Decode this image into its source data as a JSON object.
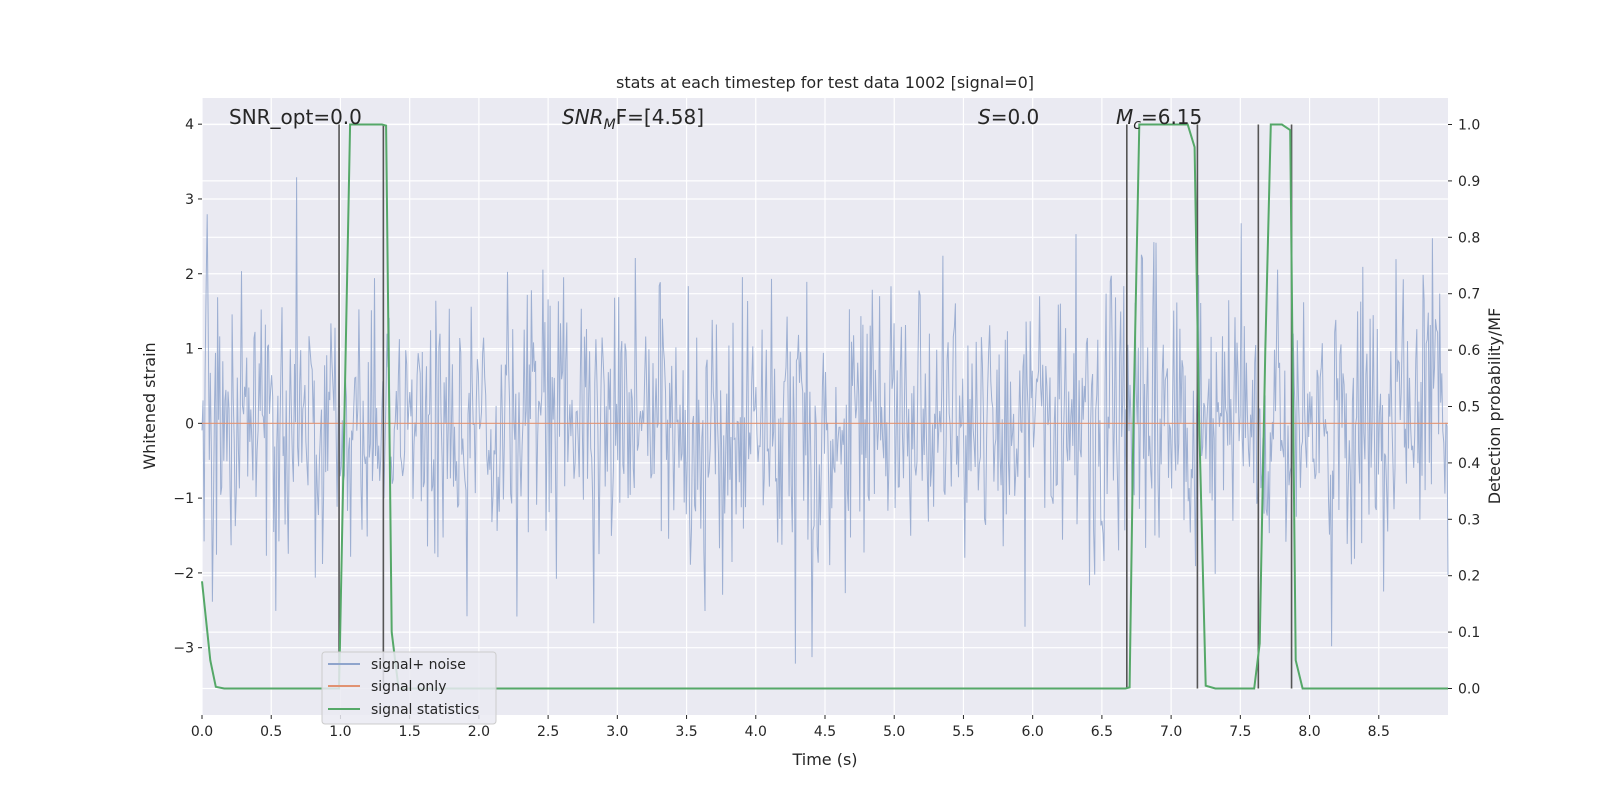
{
  "chart_data": {
    "type": "line",
    "title": "stats at each timestep for test data 1002 [signal=0]",
    "xlabel": "Time (s)",
    "ylabel": "Whitened strain",
    "y2label": "Detection probability/MF",
    "xlim": [
      0.0,
      9.0
    ],
    "ylim": [
      -3.9,
      4.35
    ],
    "y2lim": [
      -0.047,
      1.047
    ],
    "xticks": [
      0.0,
      0.5,
      1.0,
      1.5,
      2.0,
      2.5,
      3.0,
      3.5,
      4.0,
      4.5,
      5.0,
      5.5,
      6.0,
      6.5,
      7.0,
      7.5,
      8.0,
      8.5
    ],
    "xtick_labels": [
      "0.0",
      "0.5",
      "1.0",
      "1.5",
      "2.0",
      "2.5",
      "3.0",
      "3.5",
      "4.0",
      "4.5",
      "5.0",
      "5.5",
      "6.0",
      "6.5",
      "7.0",
      "7.5",
      "8.0",
      "8.5"
    ],
    "yticks": [
      -3,
      -2,
      -1,
      0,
      1,
      2,
      3,
      4
    ],
    "ytick_labels": [
      "−3",
      "−2",
      "−1",
      "0",
      "1",
      "2",
      "3",
      "4"
    ],
    "y2ticks": [
      0.0,
      0.1,
      0.2,
      0.3,
      0.4,
      0.5,
      0.6,
      0.7,
      0.8,
      0.9,
      1.0
    ],
    "y2tick_labels": [
      "0.0",
      "0.1",
      "0.2",
      "0.3",
      "0.4",
      "0.5",
      "0.6",
      "0.7",
      "0.8",
      "0.9",
      "1.0"
    ],
    "grid": true,
    "legend_position": "bottom-left",
    "annotations": {
      "snr_opt": "SNR_opt=0.0",
      "snr_mf_main": "SNR",
      "snr_mf_sub": "M",
      "snr_mf_rest": "F=[4.58]",
      "s_main": "S",
      "s_rest": "=0.0",
      "mc_main": "M",
      "mc_sub": "c",
      "mc_rest": "=6.15"
    },
    "series": [
      {
        "name": "signal+ noise",
        "color": "#8fa4cc",
        "noise_std": 0.95,
        "noise_clip": [
          -3.55,
          3.65
        ],
        "n_samples": 1200
      },
      {
        "name": "signal only",
        "color": "#e19272",
        "x": [
          0.0,
          9.0
        ],
        "y": [
          0.0,
          0.0
        ]
      },
      {
        "name": "signal statistics",
        "color": "#55a868",
        "axis": "right",
        "x": [
          0.0,
          0.06,
          0.1,
          0.16,
          0.5,
          0.95,
          0.99,
          1.03,
          1.07,
          1.2,
          1.3,
          1.33,
          1.37,
          1.42,
          1.6,
          2.0,
          3.0,
          4.0,
          5.0,
          6.0,
          6.5,
          6.67,
          6.7,
          6.73,
          6.77,
          6.85,
          7.0,
          7.12,
          7.17,
          7.2,
          7.25,
          7.32,
          7.6,
          7.64,
          7.68,
          7.72,
          7.8,
          7.86,
          7.9,
          7.95,
          8.0,
          8.5,
          9.0
        ],
        "y": [
          0.19,
          0.05,
          0.003,
          0.0,
          0.0,
          0.0,
          0.0,
          0.5,
          1.0,
          1.0,
          1.0,
          0.998,
          0.1,
          0.0,
          0.0,
          0.0,
          0.0,
          0.0,
          0.0,
          0.0,
          0.0,
          0.0,
          0.002,
          0.5,
          1.0,
          1.0,
          1.0,
          1.0,
          0.96,
          0.5,
          0.005,
          0.0,
          0.0,
          0.08,
          0.6,
          1.0,
          1.0,
          0.99,
          0.05,
          0.0,
          0.0,
          0.0,
          0.0
        ]
      }
    ],
    "vertical_markers": {
      "color": "#555555",
      "x": [
        0.99,
        1.31,
        6.68,
        7.19,
        7.63,
        7.87
      ]
    }
  }
}
